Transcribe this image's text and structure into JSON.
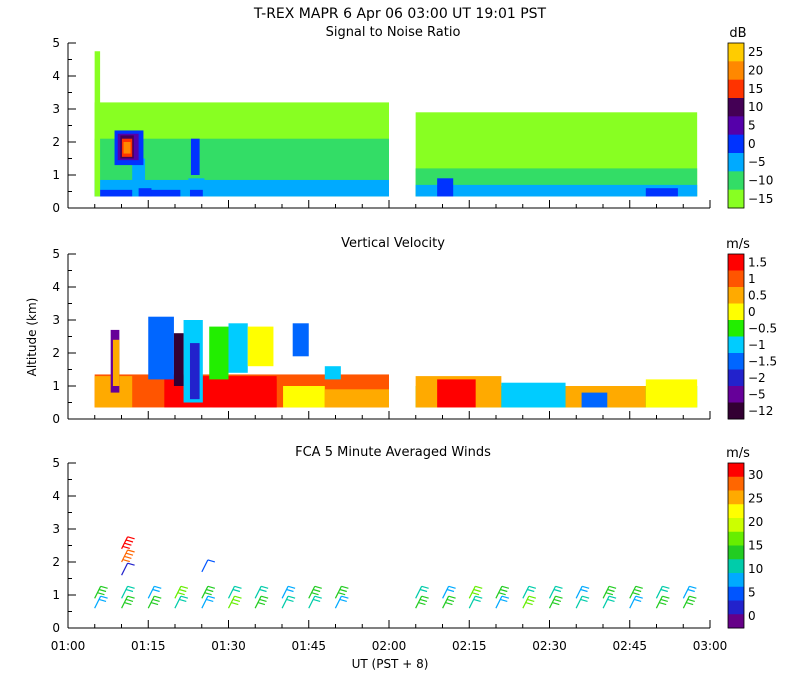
{
  "figure": {
    "title": "T-REX  MAPR  6 Apr 06  03:00 UT  19:01  PST",
    "ylabel": "Altitude (km)",
    "xlabel": "UT  (PST + 8)",
    "x_ticks": [
      "01:00",
      "01:15",
      "01:30",
      "01:45",
      "02:00",
      "02:15",
      "02:30",
      "02:45",
      "03:00"
    ],
    "y_ticks": [
      "0",
      "1",
      "2",
      "3",
      "4",
      "5"
    ]
  },
  "chart_data": [
    {
      "type": "heatmap",
      "title": "Signal to Noise Ratio",
      "colorbar_unit": "dB",
      "colorbar_labels": [
        "25",
        "20",
        "15",
        "10",
        "5",
        "0",
        "−5",
        "−10",
        "−15"
      ],
      "colorbar_colors": [
        "#ffcc00",
        "#ff8800",
        "#ff3300",
        "#440055",
        "#5500aa",
        "#0033ff",
        "#00aaff",
        "#33dd66",
        "#88ff22"
      ],
      "x_range": [
        "01:00",
        "03:00"
      ],
      "ylim": [
        0,
        5
      ],
      "data_gap": [
        "02:00",
        "02:05"
      ],
      "regions": [
        {
          "x0": 1.083,
          "x1": 2.0,
          "y0": 0.35,
          "y1": 3.2,
          "level": -15
        },
        {
          "x0": 1.083,
          "x1": 2.0,
          "y0": 0.35,
          "y1": 2.1,
          "level": -10
        },
        {
          "x0": 1.083,
          "x1": 2.0,
          "y0": 0.35,
          "y1": 0.85,
          "level": -5
        },
        {
          "x0": 1.1,
          "x1": 1.35,
          "y0": 0.35,
          "y1": 0.55,
          "level": 0
        },
        {
          "x0": 1.2,
          "x1": 1.24,
          "y0": 0.35,
          "y1": 1.5,
          "level": -5
        },
        {
          "x0": 1.383,
          "x1": 1.41,
          "y0": 1.0,
          "y1": 2.1,
          "level": 0
        },
        {
          "x0": 1.375,
          "x1": 1.425,
          "y0": 0.35,
          "y1": 0.9,
          "level": -5
        },
        {
          "x0": 1.38,
          "x1": 1.42,
          "y0": 0.35,
          "y1": 0.55,
          "level": 0
        },
        {
          "x0": 1.22,
          "x1": 1.26,
          "y0": 0.35,
          "y1": 0.6,
          "level": 0
        },
        {
          "x0": 1.145,
          "x1": 1.235,
          "y0": 1.3,
          "y1": 2.35,
          "level": 0
        },
        {
          "x0": 1.155,
          "x1": 1.22,
          "y0": 1.45,
          "y1": 2.25,
          "level": 5
        },
        {
          "x0": 1.163,
          "x1": 1.205,
          "y0": 1.5,
          "y1": 2.2,
          "level": 10
        },
        {
          "x0": 1.168,
          "x1": 1.2,
          "y0": 1.55,
          "y1": 2.1,
          "level": 15
        },
        {
          "x0": 1.173,
          "x1": 1.195,
          "y0": 1.65,
          "y1": 2.0,
          "level": 20
        },
        {
          "x0": 2.083,
          "x1": 2.96,
          "y0": 0.35,
          "y1": 2.9,
          "level": -15
        },
        {
          "x0": 2.083,
          "x1": 2.96,
          "y0": 0.35,
          "y1": 1.2,
          "level": -10
        },
        {
          "x0": 2.083,
          "x1": 2.96,
          "y0": 0.35,
          "y1": 0.7,
          "level": -5
        },
        {
          "x0": 2.15,
          "x1": 2.2,
          "y0": 0.35,
          "y1": 0.9,
          "level": 0
        },
        {
          "x0": 2.8,
          "x1": 2.9,
          "y0": 0.35,
          "y1": 0.6,
          "level": 0
        },
        {
          "x0": 1.083,
          "x1": 1.1,
          "y0": 0.35,
          "y1": 4.75,
          "level": -15
        }
      ]
    },
    {
      "type": "heatmap",
      "title": "Vertical Velocity",
      "colorbar_unit": "m/s",
      "colorbar_labels": [
        "1.5",
        "1",
        "0.5",
        "0",
        "−0.5",
        "−1",
        "−1.5",
        "−2",
        "−5",
        "−12"
      ],
      "colorbar_colors": [
        "#ff0000",
        "#ff5500",
        "#ffaa00",
        "#ffff00",
        "#22ee00",
        "#00ccff",
        "#0066ff",
        "#2222cc",
        "#660099",
        "#330033"
      ],
      "x_range": [
        "01:00",
        "03:00"
      ],
      "ylim": [
        0,
        5
      ],
      "data_gap": [
        "02:00",
        "02:05"
      ],
      "regions": [
        {
          "x0": 1.083,
          "x1": 2.0,
          "y0": 0.35,
          "y1": 1.35,
          "level": 1
        },
        {
          "x0": 1.083,
          "x1": 1.2,
          "y0": 0.35,
          "y1": 1.3,
          "level": 0.5
        },
        {
          "x0": 1.3,
          "x1": 1.65,
          "y0": 0.35,
          "y1": 1.3,
          "level": 1.5
        },
        {
          "x0": 1.45,
          "x1": 1.65,
          "y0": 0.35,
          "y1": 1.2,
          "level": 1.5
        },
        {
          "x0": 1.67,
          "x1": 1.8,
          "y0": 0.35,
          "y1": 1.0,
          "level": 0
        },
        {
          "x0": 1.8,
          "x1": 2.0,
          "y0": 0.35,
          "y1": 0.9,
          "level": 0.5
        },
        {
          "x0": 1.133,
          "x1": 1.16,
          "y0": 0.8,
          "y1": 2.7,
          "level": -5
        },
        {
          "x0": 1.14,
          "x1": 1.16,
          "y0": 1.0,
          "y1": 2.4,
          "level": 0.5
        },
        {
          "x0": 1.25,
          "x1": 1.33,
          "y0": 1.2,
          "y1": 3.1,
          "level": -1.5
        },
        {
          "x0": 1.36,
          "x1": 1.42,
          "y0": 0.5,
          "y1": 3.0,
          "level": -1
        },
        {
          "x0": 1.38,
          "x1": 1.41,
          "y0": 0.6,
          "y1": 2.3,
          "level": -2
        },
        {
          "x0": 1.44,
          "x1": 1.5,
          "y0": 1.2,
          "y1": 2.8,
          "level": -0.5
        },
        {
          "x0": 1.5,
          "x1": 1.56,
          "y0": 1.4,
          "y1": 2.9,
          "level": -1
        },
        {
          "x0": 1.56,
          "x1": 1.64,
          "y0": 1.6,
          "y1": 2.8,
          "level": 0
        },
        {
          "x0": 1.33,
          "x1": 1.36,
          "y0": 1.0,
          "y1": 2.6,
          "level": -12
        },
        {
          "x0": 1.7,
          "x1": 1.75,
          "y0": 1.9,
          "y1": 2.9,
          "level": -1.5
        },
        {
          "x0": 1.8,
          "x1": 1.85,
          "y0": 1.2,
          "y1": 1.6,
          "level": -1
        },
        {
          "x0": 2.083,
          "x1": 2.96,
          "y0": 0.35,
          "y1": 1.0,
          "level": -0.5
        },
        {
          "x0": 2.083,
          "x1": 2.35,
          "y0": 0.35,
          "y1": 1.3,
          "level": 0.5
        },
        {
          "x0": 2.15,
          "x1": 2.27,
          "y0": 0.35,
          "y1": 1.2,
          "level": 1.5
        },
        {
          "x0": 2.35,
          "x1": 2.55,
          "y0": 0.35,
          "y1": 1.1,
          "level": -1
        },
        {
          "x0": 2.55,
          "x1": 2.8,
          "y0": 0.35,
          "y1": 1.0,
          "level": 0.5
        },
        {
          "x0": 2.8,
          "x1": 2.96,
          "y0": 0.35,
          "y1": 1.2,
          "level": 0
        },
        {
          "x0": 2.6,
          "x1": 2.68,
          "y0": 0.35,
          "y1": 0.8,
          "level": -1.5
        }
      ]
    },
    {
      "type": "scatter",
      "title": "FCA 5 Minute Averaged Winds",
      "colorbar_unit": "m/s",
      "colorbar_labels": [
        "30",
        "25",
        "20",
        "15",
        "10",
        "5",
        "0"
      ],
      "colorbar_colors": [
        "#ff0000",
        "#ff6600",
        "#ffaa00",
        "#ffff00",
        "#ccff00",
        "#66ee00",
        "#22cc22",
        "#00ccaa",
        "#00aaff",
        "#0055ff",
        "#2222cc",
        "#660088"
      ],
      "x_range": [
        "01:00",
        "03:00"
      ],
      "ylim": [
        0,
        5
      ],
      "barb_times_h": [
        1.083,
        1.167,
        1.25,
        1.333,
        1.417,
        1.5,
        1.583,
        1.667,
        1.75,
        1.833,
        2.083,
        2.167,
        2.25,
        2.333,
        2.417,
        2.5,
        2.583,
        2.667,
        2.75,
        2.833,
        2.917
      ],
      "barb_altitudes_km": [
        0.6,
        0.9,
        1.2,
        1.6,
        2.0,
        2.4
      ],
      "special_barbs": [
        {
          "x": 1.167,
          "y": 2.4,
          "speed": 30
        },
        {
          "x": 1.167,
          "y": 2.0,
          "speed": 27
        },
        {
          "x": 1.167,
          "y": 1.6,
          "speed": 2
        },
        {
          "x": 1.417,
          "y": 1.7,
          "speed": 5
        }
      ]
    }
  ]
}
